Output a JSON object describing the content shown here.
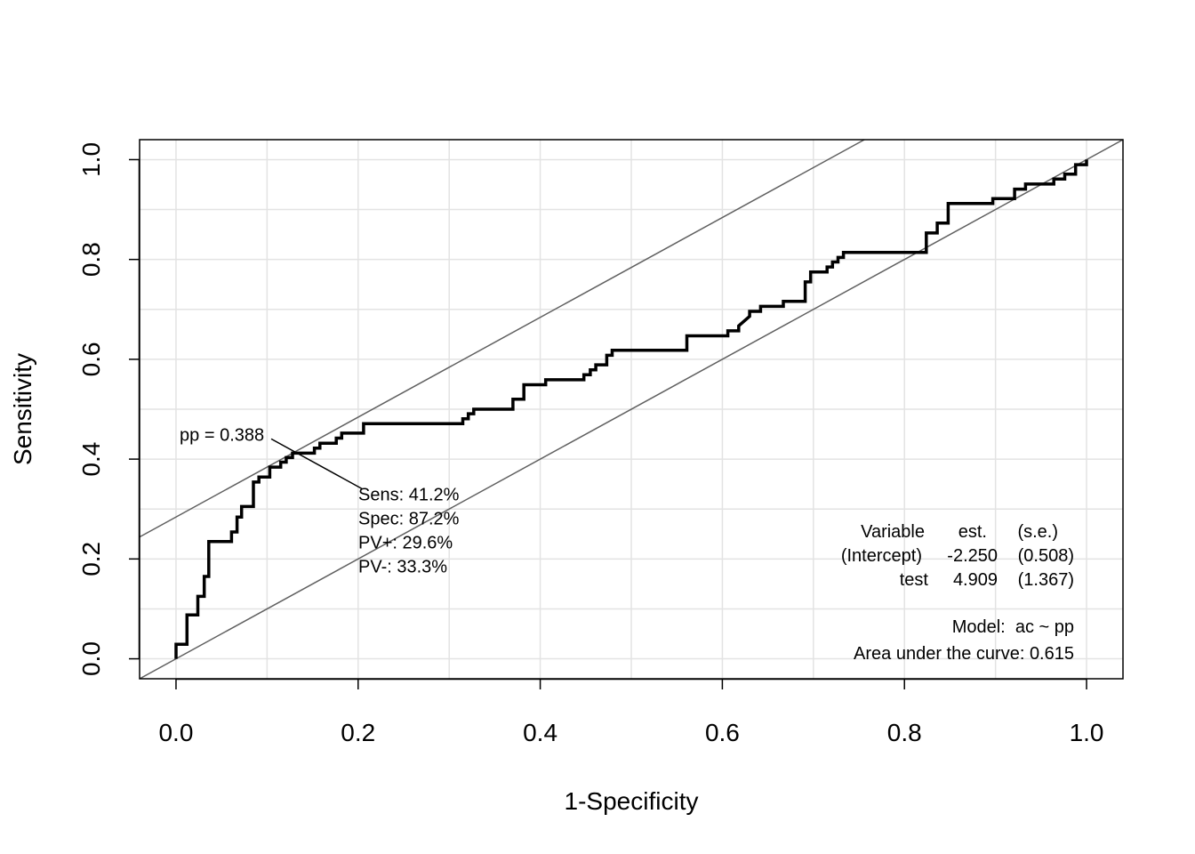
{
  "chart_data": {
    "type": "line",
    "xlabel": "1-Specificity",
    "ylabel": "Sensitivity",
    "xlim": [
      -0.04,
      1.04
    ],
    "ylim": [
      -0.04,
      1.04
    ],
    "x_ticks": [
      "0.0",
      "0.2",
      "0.4",
      "0.6",
      "0.8",
      "1.0"
    ],
    "y_ticks": [
      "0.0",
      "0.2",
      "0.4",
      "0.6",
      "0.8",
      "1.0"
    ],
    "grid": true,
    "roc_curve": [
      [
        0.0,
        0.0
      ],
      [
        0.0,
        0.029
      ],
      [
        0.012,
        0.029
      ],
      [
        0.012,
        0.088
      ],
      [
        0.024,
        0.088
      ],
      [
        0.024,
        0.125
      ],
      [
        0.031,
        0.125
      ],
      [
        0.031,
        0.165
      ],
      [
        0.036,
        0.165
      ],
      [
        0.036,
        0.235
      ],
      [
        0.061,
        0.235
      ],
      [
        0.061,
        0.254
      ],
      [
        0.067,
        0.254
      ],
      [
        0.067,
        0.284
      ],
      [
        0.072,
        0.284
      ],
      [
        0.072,
        0.305
      ],
      [
        0.085,
        0.305
      ],
      [
        0.085,
        0.354
      ],
      [
        0.091,
        0.354
      ],
      [
        0.091,
        0.364
      ],
      [
        0.103,
        0.364
      ],
      [
        0.103,
        0.384
      ],
      [
        0.115,
        0.384
      ],
      [
        0.115,
        0.394
      ],
      [
        0.121,
        0.394
      ],
      [
        0.121,
        0.403
      ],
      [
        0.128,
        0.403
      ],
      [
        0.128,
        0.412
      ],
      [
        0.152,
        0.412
      ],
      [
        0.152,
        0.422
      ],
      [
        0.158,
        0.422
      ],
      [
        0.158,
        0.432
      ],
      [
        0.176,
        0.432
      ],
      [
        0.176,
        0.442
      ],
      [
        0.182,
        0.442
      ],
      [
        0.182,
        0.452
      ],
      [
        0.206,
        0.452
      ],
      [
        0.206,
        0.471
      ],
      [
        0.315,
        0.471
      ],
      [
        0.315,
        0.481
      ],
      [
        0.321,
        0.481
      ],
      [
        0.321,
        0.491
      ],
      [
        0.327,
        0.491
      ],
      [
        0.327,
        0.5
      ],
      [
        0.37,
        0.5
      ],
      [
        0.37,
        0.52
      ],
      [
        0.382,
        0.52
      ],
      [
        0.382,
        0.549
      ],
      [
        0.406,
        0.549
      ],
      [
        0.406,
        0.559
      ],
      [
        0.448,
        0.559
      ],
      [
        0.448,
        0.569
      ],
      [
        0.455,
        0.569
      ],
      [
        0.455,
        0.579
      ],
      [
        0.461,
        0.579
      ],
      [
        0.461,
        0.589
      ],
      [
        0.473,
        0.589
      ],
      [
        0.473,
        0.608
      ],
      [
        0.479,
        0.608
      ],
      [
        0.479,
        0.618
      ],
      [
        0.561,
        0.618
      ],
      [
        0.561,
        0.647
      ],
      [
        0.606,
        0.647
      ],
      [
        0.606,
        0.657
      ],
      [
        0.618,
        0.657
      ],
      [
        0.618,
        0.667
      ],
      [
        0.63,
        0.686
      ],
      [
        0.63,
        0.696
      ],
      [
        0.642,
        0.696
      ],
      [
        0.642,
        0.706
      ],
      [
        0.667,
        0.706
      ],
      [
        0.667,
        0.716
      ],
      [
        0.691,
        0.716
      ],
      [
        0.691,
        0.755
      ],
      [
        0.697,
        0.755
      ],
      [
        0.697,
        0.775
      ],
      [
        0.715,
        0.775
      ],
      [
        0.715,
        0.785
      ],
      [
        0.721,
        0.785
      ],
      [
        0.721,
        0.795
      ],
      [
        0.727,
        0.795
      ],
      [
        0.727,
        0.804
      ],
      [
        0.733,
        0.804
      ],
      [
        0.733,
        0.814
      ],
      [
        0.824,
        0.814
      ],
      [
        0.824,
        0.853
      ],
      [
        0.836,
        0.853
      ],
      [
        0.836,
        0.873
      ],
      [
        0.848,
        0.873
      ],
      [
        0.848,
        0.912
      ],
      [
        0.897,
        0.912
      ],
      [
        0.897,
        0.922
      ],
      [
        0.921,
        0.922
      ],
      [
        0.921,
        0.941
      ],
      [
        0.933,
        0.941
      ],
      [
        0.933,
        0.951
      ],
      [
        0.964,
        0.951
      ],
      [
        0.964,
        0.961
      ],
      [
        0.976,
        0.961
      ],
      [
        0.976,
        0.971
      ],
      [
        0.988,
        0.971
      ],
      [
        0.988,
        0.99
      ],
      [
        1.0,
        0.99
      ],
      [
        1.0,
        1.0
      ]
    ],
    "reference_lines": [
      {
        "intercept": 0.0,
        "slope": 1.0
      },
      {
        "intercept": 0.284,
        "slope": 1.0
      }
    ],
    "cutoff_point": {
      "x": 0.128,
      "y": 0.412
    },
    "cutoff_label": "pp = 0.388",
    "cutoff_stats": [
      "Sens: 41.2%",
      "Spec: 87.2%",
      "PV+: 29.6%",
      "PV-: 33.3%"
    ],
    "coef_table": {
      "headers": [
        "Variable",
        "est.",
        "(s.e.)"
      ],
      "rows": [
        [
          "(Intercept)",
          "-2.250",
          "(0.508)"
        ],
        [
          "test",
          "4.909",
          "(1.367)"
        ]
      ]
    },
    "model_text": "Model:  ac ~ pp",
    "auc_text": "Area under the curve: 0.615"
  }
}
